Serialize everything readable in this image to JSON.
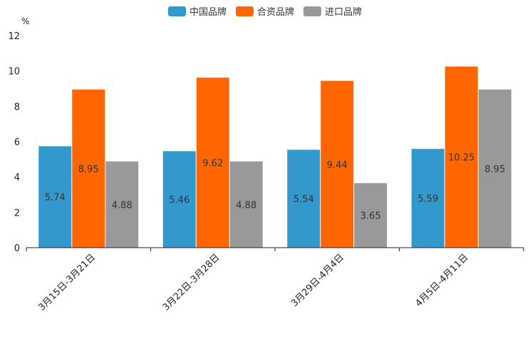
{
  "chart_data": {
    "type": "bar",
    "title": "",
    "xlabel": "",
    "ylabel": "%",
    "ylim": [
      0,
      12
    ],
    "yticks": [
      0,
      2,
      4,
      6,
      8,
      10,
      12
    ],
    "categories": [
      "3月15日-3月21日",
      "3月22日-3月28日",
      "3月29日-4月4日",
      "4月5日-4月11日"
    ],
    "series": [
      {
        "name": "中国品牌",
        "color": "#3399cc",
        "values": [
          5.74,
          5.46,
          5.54,
          5.59
        ]
      },
      {
        "name": "合资品牌",
        "color": "#ff6600",
        "values": [
          8.95,
          9.62,
          9.44,
          10.25
        ]
      },
      {
        "name": "进口品牌",
        "color": "#999999",
        "values": [
          4.88,
          4.88,
          3.65,
          8.95
        ]
      }
    ],
    "legend_position": "top-center",
    "grid": false
  }
}
